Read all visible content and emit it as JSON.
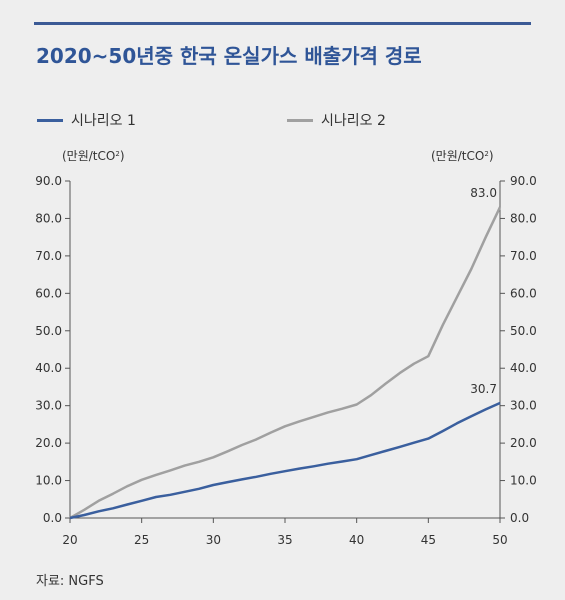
{
  "title": "2020~50년중 한국 온실가스 배출가격 경로",
  "source": "자료: NGFS",
  "unit_left": {
    "main": "(만원/tCO",
    "sup": "2",
    "end": ")"
  },
  "unit_right": {
    "main": "(만원/tCO",
    "sup": "2",
    "end": ")"
  },
  "colors": {
    "series1": "#3a5f9e",
    "series2": "#a0a0a0",
    "title": "#2f5597"
  },
  "chart_data": {
    "type": "line",
    "x_ticks": [
      "20",
      "25",
      "30",
      "35",
      "40",
      "45",
      "50"
    ],
    "y_ticks": [
      "0.0",
      "10.0",
      "20.0",
      "30.0",
      "40.0",
      "50.0",
      "60.0",
      "70.0",
      "80.0",
      "90.0"
    ],
    "xlim": [
      20,
      50
    ],
    "ylim": [
      0,
      90
    ],
    "series": [
      {
        "name": "시나리오 1",
        "x": [
          20,
          21,
          22,
          23,
          24,
          25,
          26,
          27,
          28,
          29,
          30,
          31,
          32,
          33,
          34,
          35,
          36,
          37,
          38,
          39,
          40,
          41,
          42,
          43,
          44,
          45,
          46,
          47,
          48,
          49,
          50
        ],
        "y": [
          0,
          0.8,
          1.8,
          2.6,
          3.6,
          4.6,
          5.6,
          6.2,
          7.0,
          7.8,
          8.8,
          9.6,
          10.3,
          11.0,
          11.8,
          12.5,
          13.2,
          13.8,
          14.5,
          15.1,
          15.7,
          16.8,
          17.9,
          19.0,
          20.1,
          21.2,
          23.2,
          25.3,
          27.2,
          29.0,
          30.7
        ],
        "end_label": "30.7"
      },
      {
        "name": "시나리오 2",
        "x": [
          20,
          21,
          22,
          23,
          24,
          25,
          26,
          27,
          28,
          29,
          30,
          31,
          32,
          33,
          34,
          35,
          36,
          37,
          38,
          39,
          40,
          41,
          42,
          43,
          44,
          45,
          46,
          47,
          48,
          49,
          50
        ],
        "y": [
          0,
          2.2,
          4.6,
          6.5,
          8.5,
          10.2,
          11.5,
          12.7,
          14.0,
          15.0,
          16.2,
          17.8,
          19.5,
          21.0,
          22.8,
          24.5,
          25.8,
          27.0,
          28.2,
          29.2,
          30.3,
          32.8,
          35.8,
          38.7,
          41.2,
          43.2,
          51.5,
          59.0,
          66.5,
          75.0,
          83.0
        ],
        "end_label": "83.0"
      }
    ]
  }
}
